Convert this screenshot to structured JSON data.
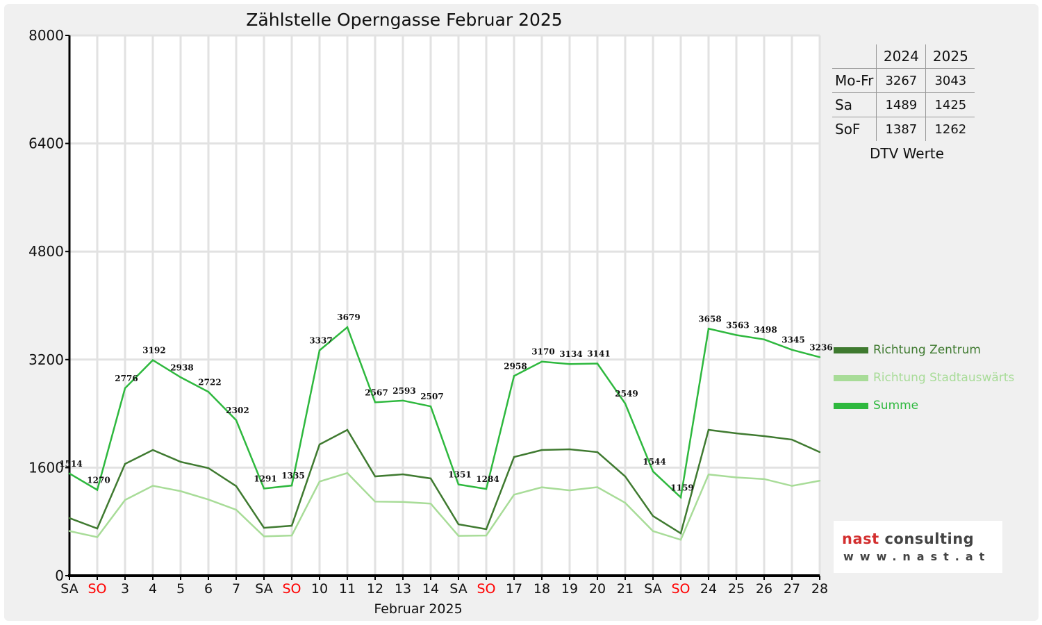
{
  "chart_data": {
    "type": "line",
    "title": "Zählstelle Operngasse Februar 2025",
    "xlabel": "Februar 2025",
    "ylabel": "",
    "ylim": [
      0,
      8000
    ],
    "yticks": [
      0,
      1600,
      3200,
      4800,
      6400,
      8000
    ],
    "grid": true,
    "legend_position": "right",
    "categories": [
      "SA",
      "SO",
      "3",
      "4",
      "5",
      "6",
      "7",
      "SA",
      "SO",
      "10",
      "11",
      "12",
      "13",
      "14",
      "SA",
      "SO",
      "17",
      "18",
      "19",
      "20",
      "21",
      "SA",
      "SO",
      "24",
      "25",
      "26",
      "27",
      "28"
    ],
    "category_colors": {
      "SO": "#ff0000"
    },
    "series": [
      {
        "name": "Richtung Zentrum",
        "color": "#3f7a30",
        "values": [
          853,
          699,
          1655,
          1861,
          1686,
          1594,
          1326,
          709,
          740,
          1943,
          2159,
          1470,
          1501,
          1440,
          761,
          689,
          1758,
          1861,
          1871,
          1830,
          1470,
          884,
          627,
          2159,
          2108,
          2067,
          2015,
          1830
        ]
      },
      {
        "name": "Richtung Stadtauswärts",
        "color": "#a8dc98",
        "values": [
          661,
          571,
          1121,
          1331,
          1252,
          1128,
          976,
          582,
          595,
          1394,
          1520,
          1097,
          1092,
          1067,
          590,
          595,
          1200,
          1309,
          1263,
          1311,
          1079,
          660,
          532,
          1499,
          1455,
          1431,
          1330,
          1406
        ]
      },
      {
        "name": "Summe",
        "color": "#2eb83e",
        "values": [
          1514,
          1270,
          2776,
          3192,
          2938,
          2722,
          2302,
          1291,
          1335,
          3337,
          3679,
          2567,
          2593,
          2507,
          1351,
          1284,
          2958,
          3170,
          3134,
          3141,
          2549,
          1544,
          1159,
          3658,
          3563,
          3498,
          3345,
          3236
        ],
        "data_labels": true
      }
    ]
  },
  "dtv_table": {
    "headers": [
      "",
      "2024",
      "2025"
    ],
    "rows": [
      [
        "Mo-Fr",
        "3267",
        "3043"
      ],
      [
        "Sa",
        "1489",
        "1425"
      ],
      [
        "SoF",
        "1387",
        "1262"
      ]
    ],
    "caption": "DTV Werte"
  },
  "logo": {
    "brand_red": "nast",
    "brand_grey": "consulting",
    "url": "www.nast.at"
  }
}
